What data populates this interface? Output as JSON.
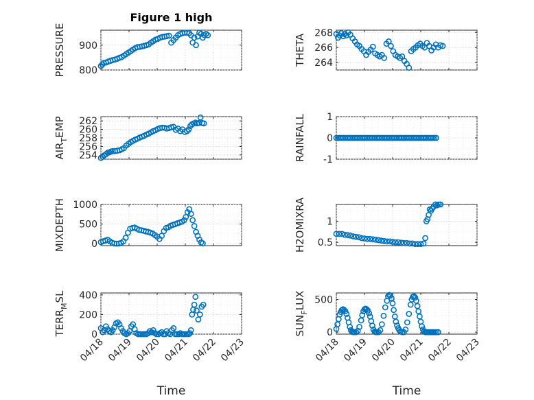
{
  "title": "Figure 1 high",
  "colors": {
    "marker": "#0072bd",
    "axis": "#262626",
    "grid": "#cfcfcf"
  },
  "x_axis": {
    "label": "Time",
    "tick_values": [
      0,
      1,
      2,
      3,
      4,
      5
    ],
    "tick_labels": [
      "04/18",
      "04/19",
      "04/20",
      "04/21",
      "04/22",
      "04/23"
    ],
    "range": [
      0,
      5
    ]
  },
  "chart_data": [
    {
      "type": "scatter",
      "ylabel": "PRESSURE",
      "ylim": [
        800,
        960
      ],
      "yticks": [
        800,
        900
      ],
      "grid": true,
      "x": [
        0,
        0.05,
        0.1,
        0.18,
        0.26,
        0.34,
        0.42,
        0.5,
        0.58,
        0.66,
        0.74,
        0.82,
        0.9,
        0.98,
        1.06,
        1.14,
        1.22,
        1.3,
        1.38,
        1.46,
        1.54,
        1.62,
        1.7,
        1.78,
        1.86,
        1.94,
        2.02,
        2.1,
        2.18,
        2.26,
        2.34,
        2.42,
        2.5,
        2.58,
        2.66,
        2.74,
        2.82,
        2.9,
        2.98,
        3.06,
        3.14,
        3.2,
        3.26,
        3.32,
        3.38,
        3.44,
        3.5,
        3.56,
        3.62,
        3.68,
        3.74,
        3.8
      ],
      "values": [
        816,
        822,
        828,
        830,
        834,
        837,
        840,
        842,
        845,
        849,
        852,
        858,
        864,
        870,
        876,
        882,
        888,
        892,
        893,
        895,
        897,
        900,
        903,
        910,
        916,
        922,
        925,
        930,
        933,
        934,
        936,
        938,
        910,
        920,
        930,
        940,
        945,
        948,
        950,
        950,
        948,
        940,
        910,
        930,
        900,
        935,
        950,
        945,
        930,
        940,
        945,
        940
      ]
    },
    {
      "type": "scatter",
      "ylabel": "THETA",
      "ylim": [
        263,
        268.3
      ],
      "yticks": [
        264,
        266,
        268
      ],
      "grid": true,
      "x": [
        0,
        0.06,
        0.12,
        0.18,
        0.24,
        0.3,
        0.36,
        0.42,
        0.5,
        0.58,
        0.66,
        0.74,
        0.82,
        0.9,
        0.98,
        1.06,
        1.14,
        1.22,
        1.3,
        1.38,
        1.46,
        1.54,
        1.62,
        1.7,
        1.78,
        1.86,
        1.94,
        2.02,
        2.1,
        2.18,
        2.26,
        2.34,
        2.42,
        2.5,
        2.58,
        2.66,
        2.74,
        2.82,
        2.9,
        2.98,
        3.06,
        3.14,
        3.22,
        3.3,
        3.38,
        3.46,
        3.54,
        3.62,
        3.7,
        3.78
      ],
      "values": [
        267.8,
        267.3,
        267.6,
        267.9,
        267.5,
        267.8,
        267.6,
        268.0,
        267.7,
        267.2,
        266.8,
        266.4,
        266.2,
        265.8,
        265.5,
        265.0,
        265.4,
        265.7,
        266.1,
        265.2,
        265.0,
        264.8,
        265.0,
        264.6,
        266.5,
        266.8,
        266.2,
        265.5,
        265.0,
        264.8,
        264.6,
        264.8,
        264.2,
        263.8,
        263.3,
        265.5,
        265.8,
        266.0,
        266.3,
        266.5,
        266.2,
        266.0,
        266.6,
        266.2,
        265.6,
        266.0,
        266.4,
        266.0,
        266.3,
        266.2
      ]
    },
    {
      "type": "scatter",
      "ylabel": "AIR_TEMP",
      "ylim": [
        253,
        263
      ],
      "yticks": [
        254,
        256,
        258,
        260,
        262
      ],
      "grid": true,
      "x": [
        0,
        0.06,
        0.12,
        0.18,
        0.24,
        0.3,
        0.36,
        0.42,
        0.5,
        0.58,
        0.66,
        0.74,
        0.82,
        0.9,
        0.98,
        1.06,
        1.14,
        1.22,
        1.3,
        1.38,
        1.46,
        1.54,
        1.62,
        1.7,
        1.78,
        1.86,
        1.94,
        2.02,
        2.1,
        2.18,
        2.26,
        2.34,
        2.42,
        2.5,
        2.58,
        2.66,
        2.74,
        2.82,
        2.9,
        2.98,
        3.06,
        3.12,
        3.18,
        3.24,
        3.3,
        3.36,
        3.42,
        3.48,
        3.54,
        3.6,
        3.66
      ],
      "values": [
        253.3,
        253.6,
        253.9,
        254.2,
        254.5,
        254.6,
        254.8,
        254.9,
        254.9,
        255.0,
        255.1,
        255.3,
        255.6,
        256.2,
        256.6,
        257.0,
        257.3,
        257.6,
        257.8,
        258.1,
        258.3,
        258.5,
        258.8,
        259.0,
        259.3,
        259.6,
        259.8,
        260.1,
        260.3,
        260.4,
        260.4,
        260.2,
        260.3,
        260.5,
        260.6,
        259.9,
        260.2,
        259.6,
        260.0,
        259.4,
        259.6,
        260.0,
        260.8,
        261.2,
        261.4,
        261.6,
        261.4,
        261.5,
        262.8,
        261.5,
        261.4
      ]
    },
    {
      "type": "scatter",
      "ylabel": "RAINFALL",
      "ylim": [
        -1,
        1
      ],
      "yticks": [
        -1,
        0,
        1
      ],
      "grid": true,
      "x_start": 0,
      "x_end": 3.55,
      "count": 60,
      "values_constant": 0
    },
    {
      "type": "scatter",
      "ylabel": "MIXDEPTH",
      "ylim": [
        -50,
        1000
      ],
      "yticks": [
        0,
        500,
        1000
      ],
      "grid": true,
      "x": [
        0,
        0.08,
        0.16,
        0.24,
        0.32,
        0.4,
        0.48,
        0.56,
        0.64,
        0.72,
        0.8,
        0.88,
        0.96,
        1.04,
        1.12,
        1.2,
        1.28,
        1.36,
        1.44,
        1.52,
        1.6,
        1.68,
        1.76,
        1.84,
        1.92,
        2.0,
        2.08,
        2.16,
        2.24,
        2.32,
        2.4,
        2.48,
        2.56,
        2.64,
        2.72,
        2.8,
        2.88,
        2.96,
        3.02,
        3.08,
        3.14,
        3.2,
        3.26,
        3.32,
        3.38,
        3.44,
        3.5,
        3.56,
        3.62
      ],
      "values": [
        40,
        60,
        80,
        100,
        60,
        20,
        5,
        0,
        5,
        20,
        60,
        150,
        280,
        380,
        400,
        410,
        380,
        350,
        340,
        330,
        310,
        300,
        280,
        260,
        220,
        180,
        120,
        200,
        320,
        400,
        420,
        460,
        480,
        500,
        520,
        540,
        560,
        600,
        680,
        800,
        880,
        760,
        600,
        450,
        300,
        200,
        100,
        30,
        10
      ]
    },
    {
      "type": "scatter",
      "ylabel": "H2OMIXRA",
      "ylim": [
        0.42,
        1.4
      ],
      "yticks": [
        0.5,
        1
      ],
      "grid": true,
      "x": [
        0,
        0.1,
        0.2,
        0.3,
        0.4,
        0.5,
        0.6,
        0.7,
        0.8,
        0.9,
        1.0,
        1.1,
        1.2,
        1.3,
        1.4,
        1.5,
        1.6,
        1.7,
        1.8,
        1.9,
        2.0,
        2.1,
        2.2,
        2.3,
        2.4,
        2.5,
        2.6,
        2.7,
        2.8,
        2.9,
        3.0,
        3.1,
        3.16,
        3.2,
        3.24,
        3.28,
        3.32,
        3.36,
        3.4,
        3.46,
        3.52,
        3.58,
        3.64,
        3.7
      ],
      "values": [
        0.7,
        0.7,
        0.7,
        0.68,
        0.67,
        0.66,
        0.64,
        0.63,
        0.62,
        0.6,
        0.59,
        0.58,
        0.58,
        0.57,
        0.56,
        0.55,
        0.54,
        0.53,
        0.52,
        0.52,
        0.51,
        0.5,
        0.5,
        0.49,
        0.48,
        0.48,
        0.47,
        0.47,
        0.46,
        0.46,
        0.46,
        0.47,
        0.6,
        1.0,
        1.05,
        1.15,
        1.28,
        1.25,
        1.3,
        1.35,
        1.4,
        1.38,
        1.4,
        1.4
      ]
    },
    {
      "type": "scatter",
      "ylabel": "TERR_MSL",
      "ylim": [
        0,
        420
      ],
      "yticks": [
        0,
        200,
        400
      ],
      "grid": true,
      "x": [
        0,
        0.06,
        0.12,
        0.18,
        0.24,
        0.3,
        0.36,
        0.42,
        0.48,
        0.54,
        0.6,
        0.66,
        0.72,
        0.78,
        0.84,
        0.9,
        0.96,
        1.02,
        1.08,
        1.14,
        1.2,
        1.26,
        1.32,
        1.38,
        1.44,
        1.5,
        1.56,
        1.62,
        1.68,
        1.74,
        1.8,
        1.86,
        1.92,
        1.98,
        2.04,
        2.1,
        2.16,
        2.22,
        2.28,
        2.34,
        2.4,
        2.46,
        2.52,
        2.58,
        2.64,
        2.7,
        2.76,
        2.82,
        2.88,
        2.94,
        3.0,
        3.06,
        3.12,
        3.16,
        3.2,
        3.24,
        3.28,
        3.32,
        3.36,
        3.4,
        3.46,
        3.52,
        3.58,
        3.64
      ],
      "values": [
        60,
        20,
        40,
        80,
        50,
        30,
        20,
        40,
        70,
        110,
        120,
        100,
        60,
        30,
        10,
        0,
        10,
        30,
        80,
        100,
        50,
        10,
        0,
        0,
        0,
        0,
        0,
        0,
        10,
        30,
        20,
        40,
        10,
        0,
        0,
        10,
        20,
        0,
        0,
        30,
        10,
        0,
        40,
        60,
        0,
        0,
        0,
        10,
        0,
        0,
        0,
        0,
        0,
        10,
        40,
        200,
        250,
        300,
        380,
        240,
        150,
        200,
        280,
        300
      ]
    },
    {
      "type": "scatter",
      "ylabel": "SUN_FLUX",
      "ylim": [
        -30,
        600
      ],
      "yticks": [
        0,
        500
      ],
      "grid": true,
      "x": [
        0,
        0.04,
        0.08,
        0.12,
        0.16,
        0.2,
        0.24,
        0.28,
        0.32,
        0.36,
        0.4,
        0.44,
        0.48,
        0.52,
        0.56,
        0.6,
        0.64,
        0.7,
        0.76,
        0.82,
        0.88,
        0.92,
        0.96,
        1.0,
        1.04,
        1.08,
        1.12,
        1.16,
        1.2,
        1.24,
        1.28,
        1.32,
        1.36,
        1.4,
        1.44,
        1.5,
        1.56,
        1.62,
        1.68,
        1.74,
        1.8,
        1.84,
        1.88,
        1.92,
        1.96,
        2.0,
        2.04,
        2.08,
        2.12,
        2.16,
        2.2,
        2.24,
        2.28,
        2.34,
        2.4,
        2.46,
        2.52,
        2.58,
        2.64,
        2.68,
        2.72,
        2.76,
        2.8,
        2.84,
        2.88,
        2.92,
        2.96,
        3.0,
        3.04,
        3.08,
        3.12,
        3.16,
        3.2,
        3.24,
        3.28,
        3.32,
        3.36,
        3.4,
        3.44,
        3.5,
        3.56,
        3.62
      ],
      "values": [
        50,
        120,
        200,
        270,
        310,
        340,
        350,
        340,
        320,
        280,
        220,
        150,
        80,
        30,
        5,
        0,
        0,
        0,
        20,
        80,
        180,
        260,
        320,
        350,
        360,
        350,
        330,
        290,
        240,
        170,
        100,
        40,
        10,
        0,
        0,
        0,
        30,
        120,
        250,
        380,
        480,
        550,
        570,
        560,
        520,
        440,
        340,
        240,
        160,
        100,
        60,
        30,
        10,
        0,
        0,
        40,
        150,
        280,
        420,
        500,
        540,
        550,
        530,
        480,
        400,
        320,
        240,
        160,
        90,
        40,
        10,
        0,
        0,
        0,
        0,
        0,
        0,
        0,
        0,
        0,
        0,
        0
      ]
    }
  ]
}
